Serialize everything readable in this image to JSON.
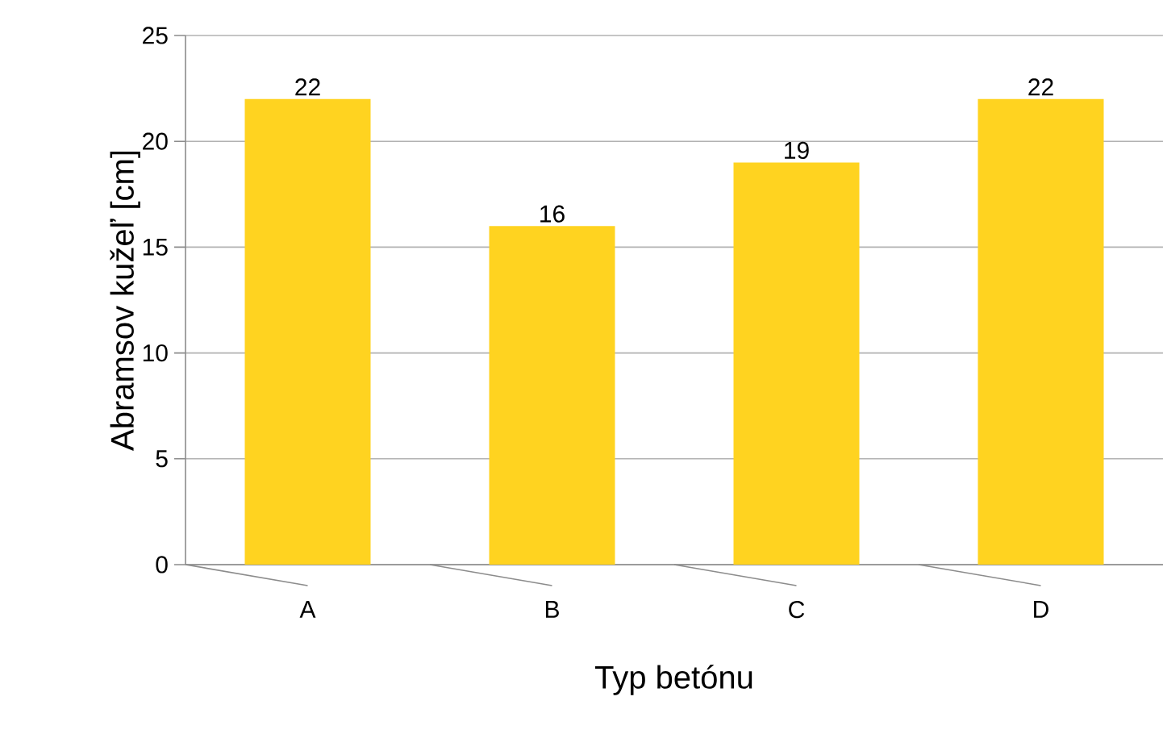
{
  "chart_data": {
    "type": "bar",
    "xlabel": "Typ betónu",
    "ylabel": "Abramsov kužeľ [cm]",
    "categories": [
      "A",
      "B",
      "C",
      "D"
    ],
    "values": [
      22,
      16,
      19,
      22
    ],
    "color": "#ffd320",
    "ylim": [
      0,
      25
    ],
    "yticks": [
      0,
      5,
      10,
      15,
      20,
      25
    ],
    "grid": "y",
    "data_labels": true
  }
}
